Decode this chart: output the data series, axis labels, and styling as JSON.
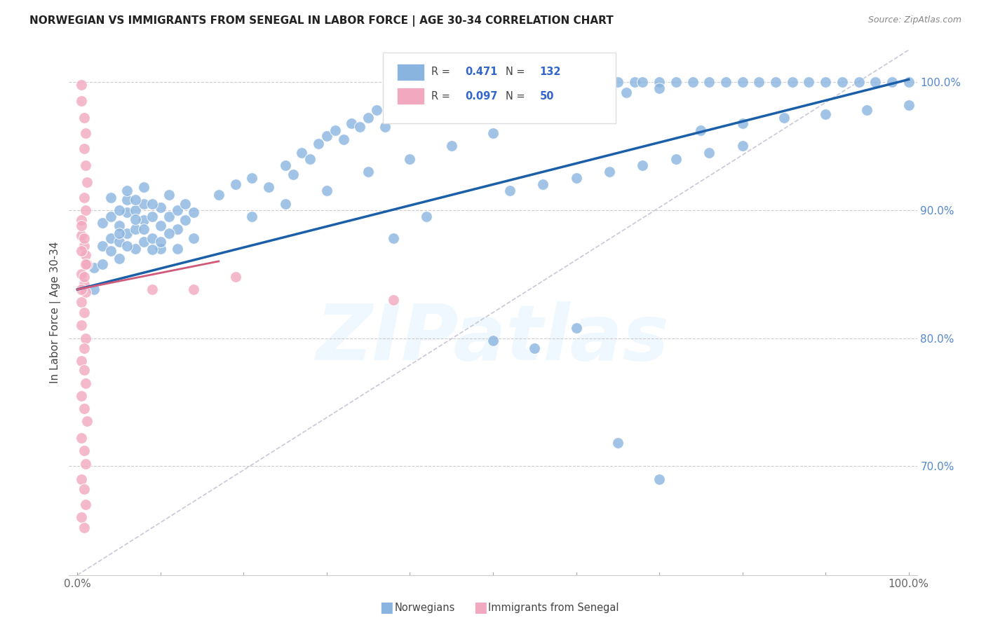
{
  "title": "NORWEGIAN VS IMMIGRANTS FROM SENEGAL IN LABOR FORCE | AGE 30-34 CORRELATION CHART",
  "source": "Source: ZipAtlas.com",
  "ylabel": "In Labor Force | Age 30-34",
  "yticks": [
    "70.0%",
    "80.0%",
    "90.0%",
    "100.0%"
  ],
  "ytick_vals": [
    0.7,
    0.8,
    0.9,
    1.0
  ],
  "xlim": [
    0.0,
    1.0
  ],
  "ylim": [
    0.615,
    1.025
  ],
  "norwegian_color": "#8ab4e0",
  "senegal_color": "#f2a8bf",
  "norwegian_R": 0.471,
  "norwegian_N": 132,
  "senegal_R": 0.097,
  "senegal_N": 50,
  "trendline_norwegian_color": "#1a5fa8",
  "trendline_senegal_color": "#d05878",
  "diagonal_color": "#c8c8d8",
  "watermark": "ZIPatlas",
  "legend_label_norwegian": "Norwegians",
  "legend_label_senegal": "Immigrants from Senegal",
  "nor_trend_x0": 0.0,
  "nor_trend_y0": 0.838,
  "nor_trend_x1": 1.0,
  "nor_trend_y1": 1.002,
  "sen_trend_x0": 0.0,
  "sen_trend_y0": 0.838,
  "sen_trend_x1": 0.17,
  "sen_trend_y1": 0.86
}
